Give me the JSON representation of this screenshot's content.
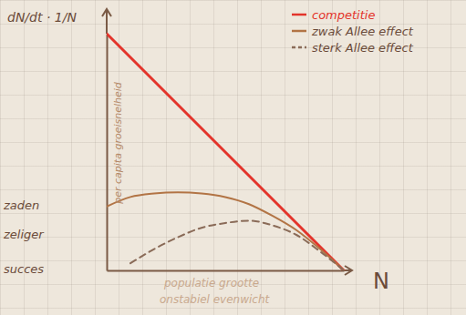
{
  "chart_data": {
    "type": "line",
    "title": "dN/dt · 1/N",
    "y_label": "per capita groeisnelheid",
    "x_label": "N",
    "annotations": [
      "populatie grootte",
      "onstabiel evenwicht",
      "zaden",
      "zeliger",
      "succes"
    ],
    "x": [
      0,
      1,
      2,
      3,
      4,
      5,
      6,
      7,
      8,
      9,
      10
    ],
    "xlim": [
      0,
      10
    ],
    "ylim": [
      0,
      10
    ],
    "tick_labels": false,
    "legend": "top-right",
    "series": [
      {
        "name": "competitie",
        "color": "#e3342b",
        "line_style": "solid",
        "values": [
          10,
          9,
          8,
          7,
          6,
          5,
          4,
          3,
          2,
          1,
          0
        ]
      },
      {
        "name": "zwak Allee effect",
        "color": "#b27445",
        "line_style": "solid",
        "values": [
          2.7,
          3.1,
          3.25,
          3.3,
          3.25,
          3.1,
          2.8,
          2.3,
          1.7,
          0.9,
          0
        ]
      },
      {
        "name": "sterk Allee effect",
        "color": "#8a6b58",
        "line_style": "dashed",
        "values": [
          null,
          0.3,
          0.9,
          1.4,
          1.8,
          2.0,
          2.1,
          1.9,
          1.5,
          0.8,
          0
        ]
      }
    ]
  }
}
